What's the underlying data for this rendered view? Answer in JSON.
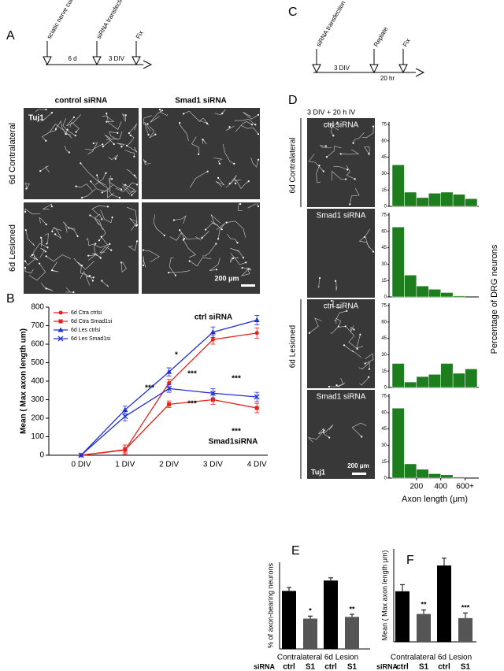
{
  "panel_labels": [
    "A",
    "B",
    "C",
    "D",
    "E",
    "F"
  ],
  "timeline_a": {
    "events": [
      "sciatic nerve cut",
      "siRNA transfection",
      "Fix"
    ],
    "intervals": [
      "6 d",
      "3 DIV"
    ]
  },
  "timeline_c": {
    "events": [
      "siRNA transfection",
      "Replate",
      "Fix"
    ],
    "intervals": [
      "3 DIV",
      "20 hr"
    ]
  },
  "micrographs_a": {
    "columns": [
      "control siRNA",
      "Smad1 siRNA"
    ],
    "rows": [
      "6d Contralateral",
      "6d Lesioned"
    ],
    "stain": "Tuj1",
    "scale_bar": "200 μm"
  },
  "micrographs_d": {
    "title": "3 DIV + 20 h  IV",
    "images": [
      "ctrl siRNA",
      "Smad1 siRNA",
      "ctrl siRNA",
      "Smad1 siRNA"
    ],
    "groups": [
      "6d Contralateral",
      "6d Lesioned"
    ],
    "stain": "Tuj1",
    "scale_bar": "200 μm",
    "xlabel": "Axon length (μm)",
    "ylabel": "Percentage of DRG neurons"
  },
  "chart_data": [
    {
      "type": "line",
      "ylabel": "Mean ( Max axon length um)",
      "categories": [
        "0 DIV",
        "1 DIV",
        "2 DIV",
        "3 DIV",
        "4 DIV"
      ],
      "ylim": [
        0,
        800
      ],
      "yticks": [
        0,
        100,
        200,
        300,
        400,
        500,
        600,
        700,
        800
      ],
      "series": [
        {
          "name": "6d Ctra ctrlsi",
          "color": "#e8201c",
          "marker": "circle",
          "values": [
            0,
            28,
            390,
            625,
            660
          ],
          "errors": [
            0,
            15,
            20,
            25,
            28
          ]
        },
        {
          "name": "6d Ctra Smad1si",
          "color": "#e8201c",
          "marker": "square",
          "values": [
            0,
            30,
            275,
            300,
            255
          ],
          "errors": [
            0,
            25,
            18,
            25,
            25
          ]
        },
        {
          "name": "6d Les ctrlsi",
          "color": "#1f2ed6",
          "marker": "triangle",
          "values": [
            0,
            245,
            450,
            665,
            730
          ],
          "errors": [
            0,
            20,
            22,
            28,
            25
          ]
        },
        {
          "name": "6d Les Smad1si",
          "color": "#1f2ed6",
          "marker": "x",
          "values": [
            0,
            210,
            360,
            335,
            315
          ],
          "errors": [
            0,
            25,
            20,
            25,
            25
          ]
        }
      ],
      "annotations": [
        "ctrl siRNA",
        "Smad1siRNA",
        "***",
        "*",
        "***",
        "***",
        "***",
        "***"
      ]
    },
    {
      "type": "histogram",
      "bins": [
        0,
        100,
        200,
        300,
        400,
        500,
        600,
        700
      ],
      "values": [
        38,
        13,
        8,
        12,
        13,
        11,
        7
      ],
      "color": "#1e7d1e",
      "xlim": [
        0,
        700
      ],
      "ylim": [
        0,
        75
      ],
      "yticks": [
        0,
        15,
        30,
        45,
        60,
        75
      ]
    },
    {
      "type": "histogram",
      "bins": [
        0,
        100,
        200,
        300,
        400,
        500,
        600,
        700
      ],
      "values": [
        64,
        20,
        10,
        7,
        4,
        1,
        0
      ],
      "color": "#1e7d1e",
      "xlim": [
        0,
        700
      ],
      "ylim": [
        0,
        75
      ],
      "yticks": [
        0,
        15,
        30,
        45,
        60,
        75
      ]
    },
    {
      "type": "histogram",
      "bins": [
        0,
        100,
        200,
        300,
        400,
        500,
        600,
        700
      ],
      "values": [
        22,
        5,
        10,
        12,
        22,
        13,
        17
      ],
      "color": "#1e7d1e",
      "xlim": [
        0,
        700
      ],
      "ylim": [
        0,
        75
      ],
      "yticks": [
        0,
        15,
        30,
        45,
        60,
        75
      ]
    },
    {
      "type": "histogram",
      "bins": [
        0,
        100,
        200,
        300,
        400,
        500,
        600,
        700
      ],
      "values": [
        64,
        13,
        8,
        4,
        3,
        1,
        0
      ],
      "color": "#1e7d1e",
      "xlim": [
        0,
        700
      ],
      "ylim": [
        0,
        75
      ],
      "yticks": [
        0,
        15,
        30,
        45,
        60,
        75
      ],
      "xticks": [
        200,
        400,
        {
          "value": 600,
          "label": "600+"
        }
      ]
    },
    {
      "type": "bar",
      "ylabel": "% of axon-bearing neurons",
      "categories": [
        "ctrl",
        "S1",
        "ctrl",
        "S1"
      ],
      "groups": [
        "Contralateral",
        "6d Lesion"
      ],
      "row_label": "siRNA",
      "values": [
        67,
        35,
        79,
        37
      ],
      "errors": [
        4,
        3,
        3,
        3
      ],
      "colors": [
        "#000000",
        "#555555",
        "#000000",
        "#555555"
      ],
      "ylim": [
        0,
        100
      ],
      "annotations": [
        "*",
        "**"
      ]
    },
    {
      "type": "bar",
      "ylabel": "Mean ( Max axon length μm)",
      "categories": [
        "ctrl",
        "S1",
        "ctrl",
        "S1"
      ],
      "groups": [
        "Contralateral",
        "6d Lesion"
      ],
      "row_label": "siRNA",
      "values": [
        245,
        135,
        370,
        115
      ],
      "errors": [
        32,
        20,
        35,
        25
      ],
      "colors": [
        "#000000",
        "#555555",
        "#000000",
        "#555555"
      ],
      "ylim": [
        0,
        450
      ],
      "annotations": [
        "**",
        "***"
      ]
    }
  ]
}
